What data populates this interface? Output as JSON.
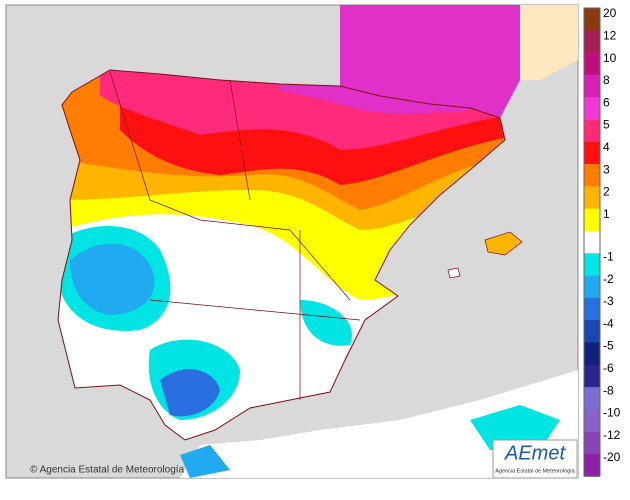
{
  "map": {
    "legend": [
      {
        "label": "20",
        "color": "#8b3a12"
      },
      {
        "label": "12",
        "color": "#a51f55"
      },
      {
        "label": "10",
        "color": "#c0107f"
      },
      {
        "label": "8",
        "color": "#d81fb4"
      },
      {
        "label": "6",
        "color": "#f03ad8"
      },
      {
        "label": "5",
        "color": "#ff2a7a"
      },
      {
        "label": "4",
        "color": "#ff1010"
      },
      {
        "label": "3",
        "color": "#ff7d00"
      },
      {
        "label": "2",
        "color": "#ffb400"
      },
      {
        "label": "1",
        "color": "#ffff00"
      },
      {
        "label": "-1",
        "color": "#00e4e4"
      },
      {
        "label": "-2",
        "color": "#22aaf0"
      },
      {
        "label": "-3",
        "color": "#2a6fe0"
      },
      {
        "label": "-4",
        "color": "#1b45b0"
      },
      {
        "label": "-5",
        "color": "#12217a"
      },
      {
        "label": "-6",
        "color": "#2a2890"
      },
      {
        "label": "-8",
        "color": "#7a6ed0"
      },
      {
        "label": "-10",
        "color": "#8c62c8"
      },
      {
        "label": "-12",
        "color": "#8a44b4"
      },
      {
        "label": "-20",
        "color": "#8c22a6"
      }
    ],
    "credit": "© Agencia Estatal de Meteorología",
    "logo": {
      "name": "AEmet",
      "subtitle": "Agencia Estatal de Meteorología"
    }
  }
}
